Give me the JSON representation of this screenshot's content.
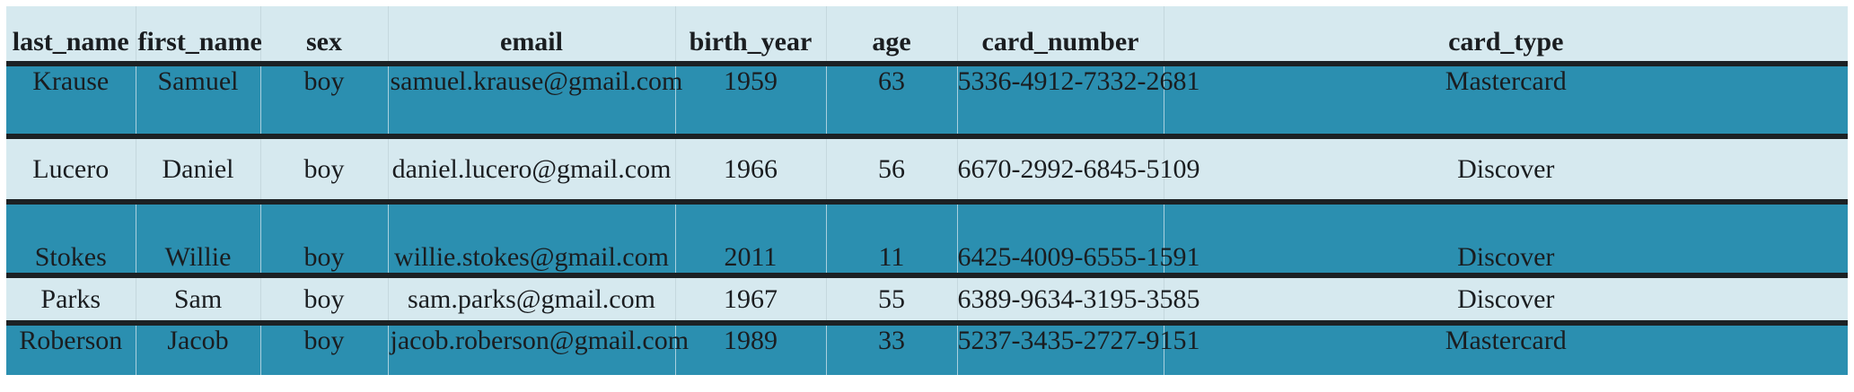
{
  "colors": {
    "header_bg": "#d6e9ef",
    "dark_row_bg": "#2b8fb0",
    "light_row_bg": "#d6e9ef",
    "row_separator": "#1c2124"
  },
  "table": {
    "columns": [
      "last_name",
      "first_name",
      "sex",
      "email",
      "birth_year",
      "age",
      "card_number",
      "card_type"
    ],
    "rows": [
      [
        "Krause",
        "Samuel",
        "boy",
        "samuel.krause@gmail.com",
        "1959",
        "63",
        "5336-4912-7332-2681",
        "Mastercard"
      ],
      [
        "Lucero",
        "Daniel",
        "boy",
        "daniel.lucero@gmail.com",
        "1966",
        "56",
        "6670-2992-6845-5109",
        "Discover"
      ],
      [
        "Stokes",
        "Willie",
        "boy",
        "willie.stokes@gmail.com",
        "2011",
        "11",
        "6425-4009-6555-1591",
        "Discover"
      ],
      [
        "Parks",
        "Sam",
        "boy",
        "sam.parks@gmail.com",
        "1967",
        "55",
        "6389-9634-3195-3585",
        "Discover"
      ],
      [
        "Roberson",
        "Jacob",
        "boy",
        "jacob.roberson@gmail.com",
        "1989",
        "33",
        "5237-3435-2727-9151",
        "Mastercard"
      ]
    ]
  }
}
